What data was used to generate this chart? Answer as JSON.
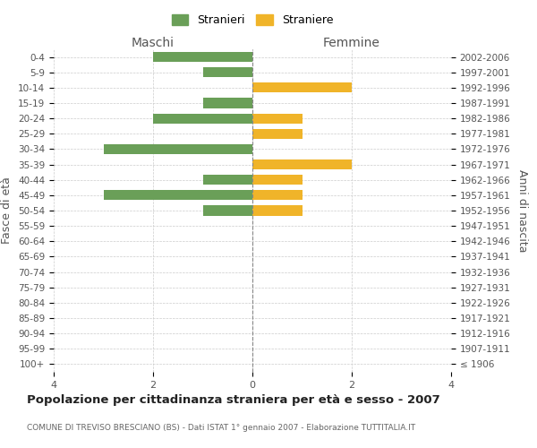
{
  "age_groups": [
    "0-4",
    "5-9",
    "10-14",
    "15-19",
    "20-24",
    "25-29",
    "30-34",
    "35-39",
    "40-44",
    "45-49",
    "50-54",
    "55-59",
    "60-64",
    "65-69",
    "70-74",
    "75-79",
    "80-84",
    "85-89",
    "90-94",
    "95-99",
    "100+"
  ],
  "birth_years": [
    "2002-2006",
    "1997-2001",
    "1992-1996",
    "1987-1991",
    "1982-1986",
    "1977-1981",
    "1972-1976",
    "1967-1971",
    "1962-1966",
    "1957-1961",
    "1952-1956",
    "1947-1951",
    "1942-1946",
    "1937-1941",
    "1932-1936",
    "1927-1931",
    "1922-1926",
    "1917-1921",
    "1912-1916",
    "1907-1911",
    "≤ 1906"
  ],
  "maschi": [
    2,
    1,
    0,
    1,
    2,
    0,
    3,
    0,
    1,
    3,
    1,
    0,
    0,
    0,
    0,
    0,
    0,
    0,
    0,
    0,
    0
  ],
  "femmine": [
    0,
    0,
    2,
    0,
    1,
    1,
    0,
    2,
    1,
    1,
    1,
    0,
    0,
    0,
    0,
    0,
    0,
    0,
    0,
    0,
    0
  ],
  "maschi_color": "#6a9f58",
  "femmine_color": "#f0b429",
  "background_color": "#ffffff",
  "grid_color": "#cccccc",
  "title": "Popolazione per cittadinanza straniera per età e sesso - 2007",
  "subtitle": "COMUNE DI TREVISO BRESCIANO (BS) - Dati ISTAT 1° gennaio 2007 - Elaborazione TUTTITALIA.IT",
  "xlabel_left": "Maschi",
  "xlabel_right": "Femmine",
  "ylabel_left": "Fasce di età",
  "ylabel_right": "Anni di nascita",
  "legend_stranieri": "Stranieri",
  "legend_straniere": "Straniere",
  "xlim": 4
}
